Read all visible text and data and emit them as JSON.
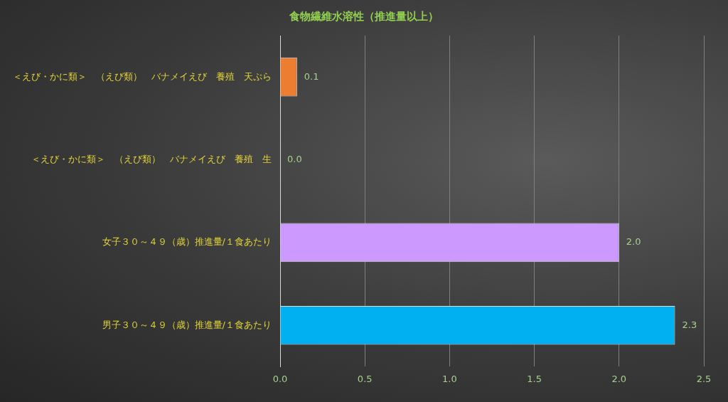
{
  "chart_data": {
    "type": "bar",
    "orientation": "horizontal",
    "title": "食物繊維水溶性（推進量以上）",
    "categories": [
      "＜えび・かに類＞　（えび類）　バナメイえび　養殖　天ぷら",
      "＜えび・かに類＞　（えび類）　バナメイえび　養殖　生",
      "女子３０～４９（歳）推進量/１食あたり",
      "男子３０～４９（歳）推進量/１食あたり"
    ],
    "values": [
      0.1,
      0.0,
      2.0,
      2.33
    ],
    "value_labels": [
      "0.1",
      "0.0",
      "2.0",
      "2.3"
    ],
    "colors": [
      "#ed7d31",
      "#a5a5a5",
      "#cc99ff",
      "#00b0f0"
    ],
    "xlim": [
      0,
      2.5
    ],
    "xticks": [
      {
        "value": 0,
        "label": "0.0"
      },
      {
        "value": 0.5,
        "label": "0.5"
      },
      {
        "value": 1,
        "label": "1.0"
      },
      {
        "value": 1.5,
        "label": "1.5"
      },
      {
        "value": 2,
        "label": "2.0"
      },
      {
        "value": 2.5,
        "label": "2.5"
      }
    ],
    "grid": "x",
    "legend": false
  }
}
